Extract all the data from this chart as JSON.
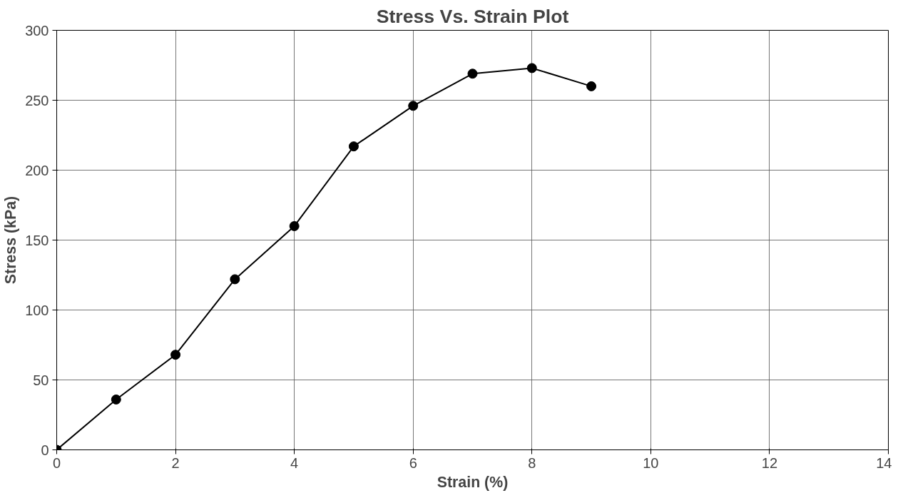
{
  "chart_data": {
    "type": "line",
    "title": "Stress Vs. Strain Plot",
    "xlabel": "Strain (%)",
    "ylabel": "Stress (kPa)",
    "x": [
      0,
      1,
      2,
      3,
      4,
      5,
      6,
      7,
      8,
      9
    ],
    "series": [
      {
        "color": "#000000",
        "values": [
          0,
          36,
          68,
          122,
          160,
          217,
          246,
          269,
          273,
          260
        ]
      }
    ],
    "xlim": [
      0,
      14
    ],
    "xticks": [
      0,
      2,
      4,
      6,
      8,
      10,
      12,
      14
    ],
    "ylim": [
      0,
      300
    ],
    "yticks": [
      0,
      50,
      100,
      150,
      200,
      250,
      300
    ],
    "grid": true,
    "marker": "circle",
    "line_style": "solid"
  }
}
